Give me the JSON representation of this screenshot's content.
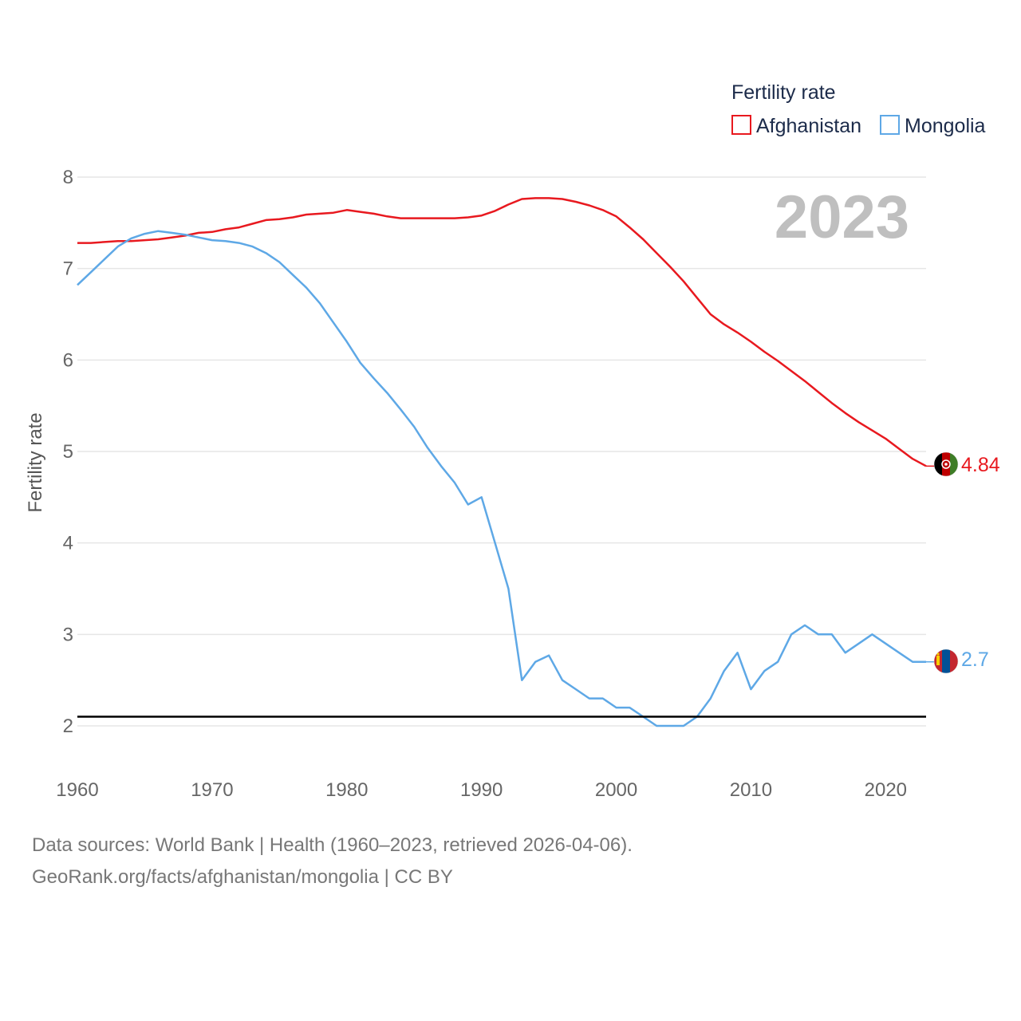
{
  "chart_data": {
    "type": "line",
    "title": "Fertility rate",
    "current_year_label": "2023",
    "xlabel": "",
    "ylabel": "Fertility rate",
    "xlim": [
      1960,
      2023
    ],
    "ylim": [
      1.6,
      8.1
    ],
    "x_ticks": [
      "1960",
      "1970",
      "1980",
      "1990",
      "2000",
      "2010",
      "2020"
    ],
    "y_ticks": [
      "2",
      "3",
      "4",
      "5",
      "6",
      "7",
      "8"
    ],
    "reference_line": {
      "y": 2.1,
      "color": "#000000"
    },
    "legend_position": "top-right",
    "series": [
      {
        "name": "Afghanistan",
        "color": "#e8191f",
        "end_label": "4.84",
        "flag": "afghanistan-flag-icon",
        "x": [
          1960,
          1961,
          1962,
          1963,
          1964,
          1965,
          1966,
          1967,
          1968,
          1969,
          1970,
          1971,
          1972,
          1973,
          1974,
          1975,
          1976,
          1977,
          1978,
          1979,
          1980,
          1981,
          1982,
          1983,
          1984,
          1985,
          1986,
          1987,
          1988,
          1989,
          1990,
          1991,
          1992,
          1993,
          1994,
          1995,
          1996,
          1997,
          1998,
          1999,
          2000,
          2001,
          2002,
          2003,
          2004,
          2005,
          2006,
          2007,
          2008,
          2009,
          2010,
          2011,
          2012,
          2013,
          2014,
          2015,
          2016,
          2017,
          2018,
          2019,
          2020,
          2021,
          2022,
          2023
        ],
        "values": [
          7.28,
          7.28,
          7.29,
          7.3,
          7.3,
          7.31,
          7.32,
          7.34,
          7.36,
          7.39,
          7.4,
          7.43,
          7.45,
          7.49,
          7.53,
          7.54,
          7.56,
          7.59,
          7.6,
          7.61,
          7.64,
          7.62,
          7.6,
          7.57,
          7.55,
          7.55,
          7.55,
          7.55,
          7.55,
          7.56,
          7.58,
          7.63,
          7.7,
          7.76,
          7.77,
          7.77,
          7.76,
          7.73,
          7.69,
          7.64,
          7.57,
          7.45,
          7.32,
          7.17,
          7.02,
          6.86,
          6.68,
          6.5,
          6.39,
          6.3,
          6.2,
          6.09,
          5.99,
          5.88,
          5.77,
          5.65,
          5.53,
          5.42,
          5.32,
          5.23,
          5.14,
          5.03,
          4.92,
          4.84
        ]
      },
      {
        "name": "Mongolia",
        "color": "#5ea8e6",
        "end_label": "2.7",
        "flag": "mongolia-flag-icon",
        "x": [
          1960,
          1961,
          1962,
          1963,
          1964,
          1965,
          1966,
          1967,
          1968,
          1969,
          1970,
          1971,
          1972,
          1973,
          1974,
          1975,
          1976,
          1977,
          1978,
          1979,
          1980,
          1981,
          1982,
          1983,
          1984,
          1985,
          1986,
          1987,
          1988,
          1989,
          1990,
          1991,
          1992,
          1993,
          1994,
          1995,
          1996,
          1997,
          1998,
          1999,
          2000,
          2001,
          2002,
          2003,
          2004,
          2005,
          2006,
          2007,
          2008,
          2009,
          2010,
          2011,
          2012,
          2013,
          2014,
          2015,
          2016,
          2017,
          2018,
          2019,
          2020,
          2021,
          2022,
          2023
        ],
        "values": [
          6.82,
          6.96,
          7.1,
          7.24,
          7.33,
          7.38,
          7.41,
          7.39,
          7.37,
          7.34,
          7.31,
          7.3,
          7.28,
          7.24,
          7.17,
          7.07,
          6.93,
          6.79,
          6.62,
          6.41,
          6.2,
          5.97,
          5.8,
          5.64,
          5.46,
          5.27,
          5.04,
          4.84,
          4.66,
          4.42,
          4.5,
          4.0,
          3.5,
          2.5,
          2.7,
          2.77,
          2.5,
          2.4,
          2.3,
          2.3,
          2.2,
          2.2,
          2.1,
          2.0,
          2.0,
          2.0,
          2.1,
          2.3,
          2.6,
          2.8,
          2.4,
          2.6,
          2.7,
          3.0,
          3.1,
          3.0,
          3.0,
          2.8,
          2.9,
          3.0,
          2.9,
          2.8,
          2.7,
          2.7
        ]
      }
    ]
  },
  "source": {
    "line1": "Data sources: World Bank | Health (1960–2023, retrieved 2026-04-06).",
    "line2": "GeoRank.org/facts/afghanistan/mongolia | CC BY"
  }
}
